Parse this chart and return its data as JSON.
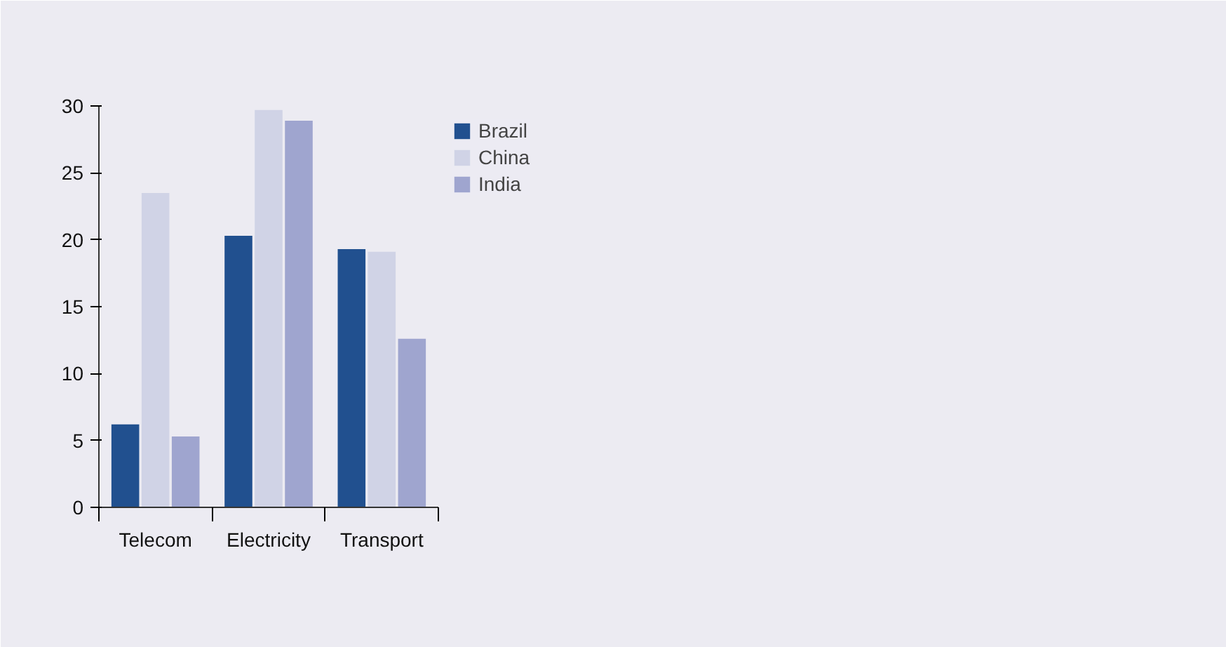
{
  "chart_data": {
    "type": "bar",
    "categories": [
      "Telecom",
      "Electricity",
      "Transport"
    ],
    "series": [
      {
        "name": "Brazil",
        "color": "#21508f",
        "values": [
          6.2,
          20.3,
          19.3
        ]
      },
      {
        "name": "China",
        "color": "#d0d3e6",
        "values": [
          23.5,
          29.7,
          19.1
        ]
      },
      {
        "name": "India",
        "color": "#9fa5cf",
        "values": [
          5.3,
          28.9,
          12.6
        ]
      }
    ],
    "ylim": [
      0,
      30
    ],
    "yticks": [
      0,
      5,
      10,
      15,
      20,
      25,
      30
    ],
    "grid": false,
    "legend": "top right"
  }
}
